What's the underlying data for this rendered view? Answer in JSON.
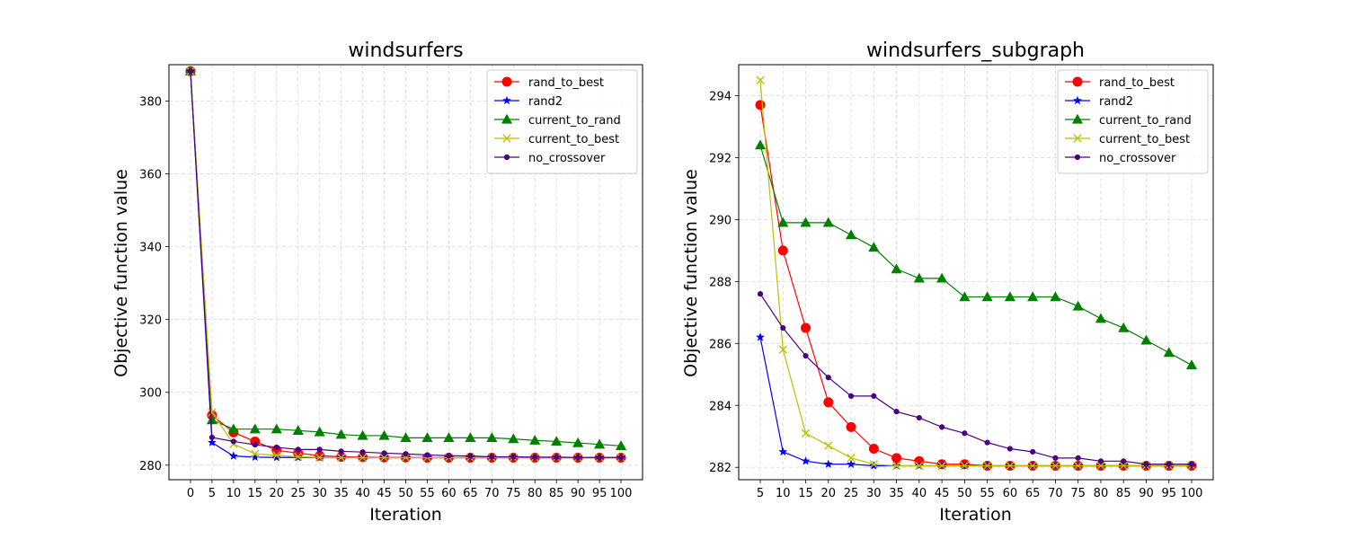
{
  "chart_data": [
    {
      "type": "line",
      "title": "windsurfers",
      "xlabel": "Iteration",
      "ylabel": "Objective function value",
      "x_ticks": [
        0,
        5,
        10,
        15,
        20,
        25,
        30,
        35,
        40,
        45,
        50,
        55,
        60,
        65,
        70,
        75,
        80,
        85,
        90,
        95,
        100
      ],
      "y_ticks": [
        280,
        300,
        320,
        340,
        360,
        380
      ],
      "xlim": [
        -5,
        105
      ],
      "ylim": [
        276,
        390
      ],
      "grid": true,
      "legend_position": "top-right",
      "series": [
        {
          "name": "rand_to_best",
          "color": "#ff0000",
          "marker": "circle",
          "x": [
            0,
            5,
            10,
            15,
            20,
            25,
            30,
            35,
            40,
            45,
            50,
            55,
            60,
            65,
            70,
            75,
            80,
            85,
            90,
            95,
            100
          ],
          "y": [
            388.2,
            293.7,
            289.0,
            286.5,
            284.1,
            283.3,
            282.6,
            282.3,
            282.2,
            282.1,
            282.1,
            282.05,
            282.05,
            282.05,
            282.05,
            282.05,
            282.05,
            282.05,
            282.05,
            282.05,
            282.05
          ]
        },
        {
          "name": "rand2",
          "color": "#0000ff",
          "marker": "star",
          "x": [
            0,
            5,
            10,
            15,
            20,
            25,
            30,
            35,
            40,
            45,
            50,
            55,
            60,
            65,
            70,
            75,
            80,
            85,
            90,
            95,
            100
          ],
          "y": [
            388.2,
            286.2,
            282.5,
            282.2,
            282.1,
            282.1,
            282.05,
            282.05,
            282.05,
            282.05,
            282.05,
            282.05,
            282.05,
            282.05,
            282.05,
            282.05,
            282.05,
            282.05,
            282.05,
            282.05,
            282.05
          ]
        },
        {
          "name": "current_to_rand",
          "color": "#008000",
          "marker": "triangle",
          "x": [
            0,
            5,
            10,
            15,
            20,
            25,
            30,
            35,
            40,
            45,
            50,
            55,
            60,
            65,
            70,
            75,
            80,
            85,
            90,
            95,
            100
          ],
          "y": [
            388.2,
            292.4,
            289.9,
            289.9,
            289.9,
            289.5,
            289.1,
            288.4,
            288.1,
            288.1,
            287.5,
            287.5,
            287.5,
            287.5,
            287.5,
            287.2,
            286.8,
            286.5,
            286.1,
            285.7,
            285.3
          ]
        },
        {
          "name": "current_to_best",
          "color": "#bfbf00",
          "marker": "x",
          "x": [
            0,
            5,
            10,
            15,
            20,
            25,
            30,
            35,
            40,
            45,
            50,
            55,
            60,
            65,
            70,
            75,
            80,
            85,
            90,
            95,
            100
          ],
          "y": [
            388.2,
            294.5,
            285.8,
            283.1,
            282.7,
            282.3,
            282.1,
            282.05,
            282.05,
            282.05,
            282.05,
            282.05,
            282.05,
            282.05,
            282.05,
            282.05,
            282.05,
            282.05,
            282.05,
            282.05,
            282.05
          ]
        },
        {
          "name": "no_crossover",
          "color": "#4b0082",
          "marker": "dot",
          "x": [
            0,
            5,
            10,
            15,
            20,
            25,
            30,
            35,
            40,
            45,
            50,
            55,
            60,
            65,
            70,
            75,
            80,
            85,
            90,
            95,
            100
          ],
          "y": [
            388.2,
            287.6,
            286.5,
            285.6,
            284.9,
            284.3,
            284.3,
            283.8,
            283.6,
            283.3,
            283.1,
            282.8,
            282.6,
            282.5,
            282.3,
            282.3,
            282.2,
            282.2,
            282.1,
            282.1,
            282.1
          ]
        }
      ]
    },
    {
      "type": "line",
      "title": "windsurfers_subgraph",
      "xlabel": "Iteration",
      "ylabel": "Objective function value",
      "x_ticks": [
        5,
        10,
        15,
        20,
        25,
        30,
        35,
        40,
        45,
        50,
        55,
        60,
        65,
        70,
        75,
        80,
        85,
        90,
        95,
        100
      ],
      "y_ticks": [
        282,
        284,
        286,
        288,
        290,
        292,
        294
      ],
      "xlim": [
        0.25,
        104.75
      ],
      "ylim": [
        281.6,
        295.0
      ],
      "grid": true,
      "legend_position": "top-right",
      "series": [
        {
          "name": "rand_to_best",
          "color": "#ff0000",
          "marker": "circle",
          "x": [
            5,
            10,
            15,
            20,
            25,
            30,
            35,
            40,
            45,
            50,
            55,
            60,
            65,
            70,
            75,
            80,
            85,
            90,
            95,
            100
          ],
          "y": [
            293.7,
            289.0,
            286.5,
            284.1,
            283.3,
            282.6,
            282.3,
            282.2,
            282.1,
            282.1,
            282.05,
            282.05,
            282.05,
            282.05,
            282.05,
            282.05,
            282.05,
            282.05,
            282.05,
            282.05
          ]
        },
        {
          "name": "rand2",
          "color": "#0000ff",
          "marker": "star",
          "x": [
            5,
            10,
            15,
            20,
            25,
            30,
            35,
            40,
            45,
            50,
            55,
            60,
            65,
            70,
            75,
            80,
            85,
            90,
            95,
            100
          ],
          "y": [
            286.2,
            282.5,
            282.2,
            282.1,
            282.1,
            282.05,
            282.05,
            282.05,
            282.05,
            282.05,
            282.05,
            282.05,
            282.05,
            282.05,
            282.05,
            282.05,
            282.05,
            282.05,
            282.05,
            282.05
          ]
        },
        {
          "name": "current_to_rand",
          "color": "#008000",
          "marker": "triangle",
          "x": [
            5,
            10,
            15,
            20,
            25,
            30,
            35,
            40,
            45,
            50,
            55,
            60,
            65,
            70,
            75,
            80,
            85,
            90,
            95,
            100
          ],
          "y": [
            292.4,
            289.9,
            289.9,
            289.9,
            289.5,
            289.1,
            288.4,
            288.1,
            288.1,
            287.5,
            287.5,
            287.5,
            287.5,
            287.5,
            287.2,
            286.8,
            286.5,
            286.1,
            285.7,
            285.3
          ]
        },
        {
          "name": "current_to_best",
          "color": "#bfbf00",
          "marker": "x",
          "x": [
            5,
            10,
            15,
            20,
            25,
            30,
            35,
            40,
            45,
            50,
            55,
            60,
            65,
            70,
            75,
            80,
            85,
            90,
            95,
            100
          ],
          "y": [
            294.5,
            285.8,
            283.1,
            282.7,
            282.3,
            282.1,
            282.05,
            282.05,
            282.05,
            282.05,
            282.05,
            282.05,
            282.05,
            282.05,
            282.05,
            282.05,
            282.05,
            282.05,
            282.05,
            282.05
          ]
        },
        {
          "name": "no_crossover",
          "color": "#4b0082",
          "marker": "dot",
          "x": [
            5,
            10,
            15,
            20,
            25,
            30,
            35,
            40,
            45,
            50,
            55,
            60,
            65,
            70,
            75,
            80,
            85,
            90,
            95,
            100
          ],
          "y": [
            287.6,
            286.5,
            285.6,
            284.9,
            284.3,
            284.3,
            283.8,
            283.6,
            283.3,
            283.1,
            282.8,
            282.6,
            282.5,
            282.3,
            282.3,
            282.2,
            282.2,
            282.1,
            282.1,
            282.1
          ]
        }
      ]
    }
  ]
}
